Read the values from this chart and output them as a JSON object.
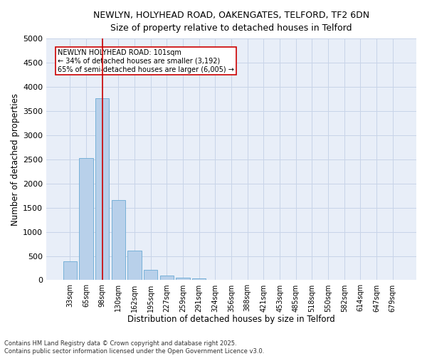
{
  "title_line1": "NEWLYN, HOLYHEAD ROAD, OAKENGATES, TELFORD, TF2 6DN",
  "title_line2": "Size of property relative to detached houses in Telford",
  "xlabel": "Distribution of detached houses by size in Telford",
  "ylabel": "Number of detached properties",
  "categories": [
    "33sqm",
    "65sqm",
    "98sqm",
    "130sqm",
    "162sqm",
    "195sqm",
    "227sqm",
    "259sqm",
    "291sqm",
    "324sqm",
    "356sqm",
    "388sqm",
    "421sqm",
    "453sqm",
    "485sqm",
    "518sqm",
    "550sqm",
    "582sqm",
    "614sqm",
    "647sqm",
    "679sqm"
  ],
  "values": [
    390,
    2530,
    3760,
    1650,
    610,
    220,
    100,
    55,
    35,
    0,
    0,
    0,
    0,
    0,
    0,
    0,
    0,
    0,
    0,
    0,
    0
  ],
  "bar_color": "#b8d0ea",
  "bar_edge_color": "#6aaad4",
  "grid_color": "#c8d4e8",
  "background_color": "#e8eef8",
  "ylim": [
    0,
    5000
  ],
  "yticks": [
    0,
    500,
    1000,
    1500,
    2000,
    2500,
    3000,
    3500,
    4000,
    4500,
    5000
  ],
  "vline_x": 2,
  "vline_color": "#cc0000",
  "annotation_text": "NEWLYN HOLYHEAD ROAD: 101sqm\n← 34% of detached houses are smaller (3,192)\n65% of semi-detached houses are larger (6,005) →",
  "annotation_box_color": "#cc0000",
  "footer_line1": "Contains HM Land Registry data © Crown copyright and database right 2025.",
  "footer_line2": "Contains public sector information licensed under the Open Government Licence v3.0."
}
